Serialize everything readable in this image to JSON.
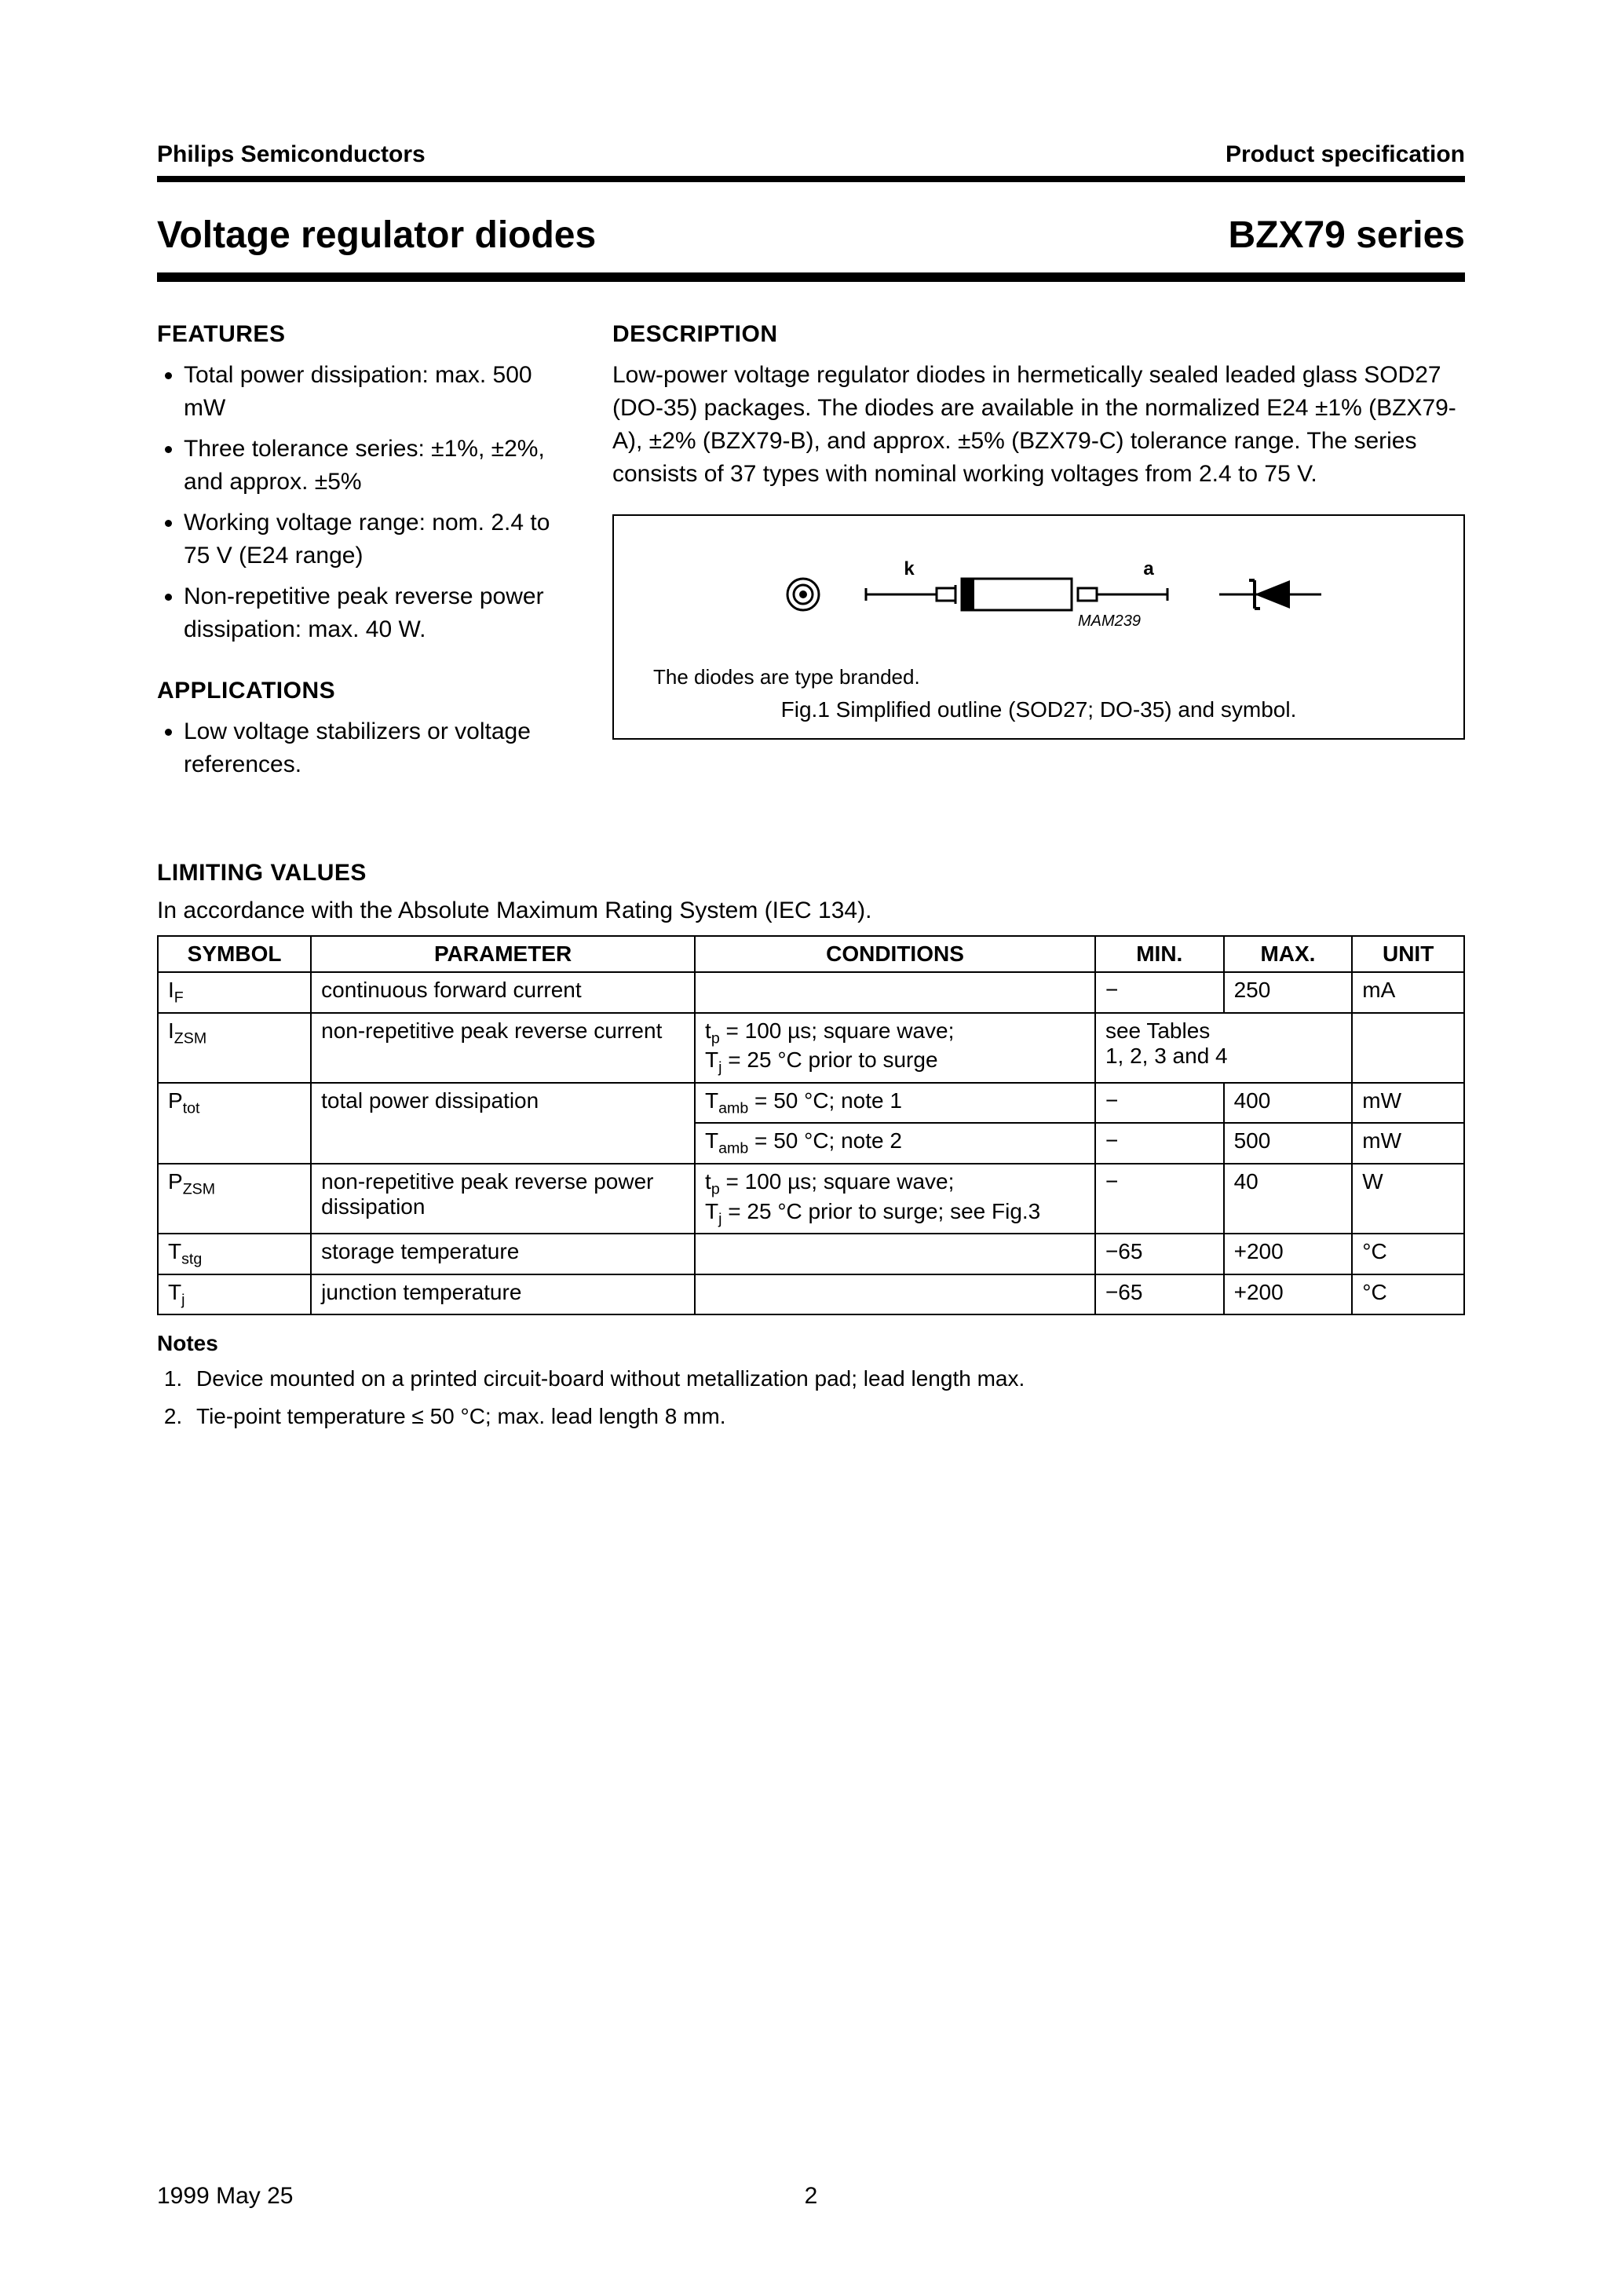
{
  "header": {
    "left": "Philips Semiconductors",
    "right": "Product specification"
  },
  "title": {
    "left": "Voltage regulator diodes",
    "right": "BZX79 series"
  },
  "features": {
    "heading": "FEATURES",
    "items": [
      "Total power dissipation: max. 500 mW",
      "Three tolerance series: ±1%, ±2%, and approx. ±5%",
      "Working voltage range: nom. 2.4 to 75 V (E24 range)",
      "Non-repetitive peak reverse power dissipation: max. 40 W."
    ]
  },
  "applications": {
    "heading": "APPLICATIONS",
    "item": "Low voltage stabilizers or voltage references."
  },
  "description": {
    "heading": "DESCRIPTION",
    "text": "Low-power voltage regulator diodes in hermetically sealed leaded glass SOD27 (DO-35) packages. The diodes are available in the normalized E24 ±1% (BZX79-A), ±2% (BZX79-B), and approx. ±5% (BZX79-C) tolerance range. The series consists of 37 types with nominal working voltages from 2.4 to 75 V."
  },
  "figure": {
    "label_k": "k",
    "label_a": "a",
    "code": "MAM239",
    "note": "The diodes are type branded.",
    "caption": "Fig.1   Simplified outline (SOD27; DO-35) and symbol."
  },
  "limiting": {
    "heading": "LIMITING VALUES",
    "intro": "In accordance with the Absolute Maximum Rating System (IEC 134).",
    "columns": [
      "SYMBOL",
      "PARAMETER",
      "CONDITIONS",
      "MIN.",
      "MAX.",
      "UNIT"
    ],
    "rows": [
      {
        "sym_main": "I",
        "sym_sub": "F",
        "param": "continuous forward current",
        "cond": "",
        "min": "−",
        "max": "250",
        "unit": "mA",
        "merge": false
      },
      {
        "sym_main": "I",
        "sym_sub": "ZSM",
        "param": "non-repetitive peak reverse current",
        "cond": "tₚ = 100 µs; square wave; Tⱼ = 25 °C prior to surge",
        "minmax": "see Tables 1, 2, 3 and 4",
        "unit": "",
        "merge": true
      },
      {
        "sym_main": "P",
        "sym_sub": "tot",
        "param": "total power dissipation",
        "cond": "T_amb = 50 °C; note 1",
        "min": "−",
        "max": "400",
        "unit": "mW",
        "merge": false,
        "rowspan": true
      },
      {
        "sym_main": "",
        "sym_sub": "",
        "param": "",
        "cond": "T_amb = 50 °C; note 2",
        "min": "−",
        "max": "500",
        "unit": "mW",
        "merge": false,
        "second": true
      },
      {
        "sym_main": "P",
        "sym_sub": "ZSM",
        "param": "non-repetitive peak reverse power dissipation",
        "cond": "tₚ = 100 µs; square wave; Tⱼ = 25 °C prior to surge; see Fig.3",
        "min": "−",
        "max": "40",
        "unit": "W",
        "merge": false
      },
      {
        "sym_main": "T",
        "sym_sub": "stg",
        "param": "storage temperature",
        "cond": "",
        "min": "−65",
        "max": "+200",
        "unit": "°C",
        "merge": false
      },
      {
        "sym_main": "T",
        "sym_sub": "j",
        "param": "junction temperature",
        "cond": "",
        "min": "−65",
        "max": "+200",
        "unit": "°C",
        "merge": false
      }
    ]
  },
  "notes": {
    "heading": "Notes",
    "items": [
      "Device mounted on a printed circuit-board without metallization pad; lead length max.",
      "Tie-point temperature ≤ 50 °C; max. lead length 8 mm."
    ]
  },
  "footer": {
    "date": "1999 May 25",
    "page": "2"
  },
  "colors": {
    "text": "#000000",
    "background": "#ffffff",
    "rule": "#000000"
  }
}
